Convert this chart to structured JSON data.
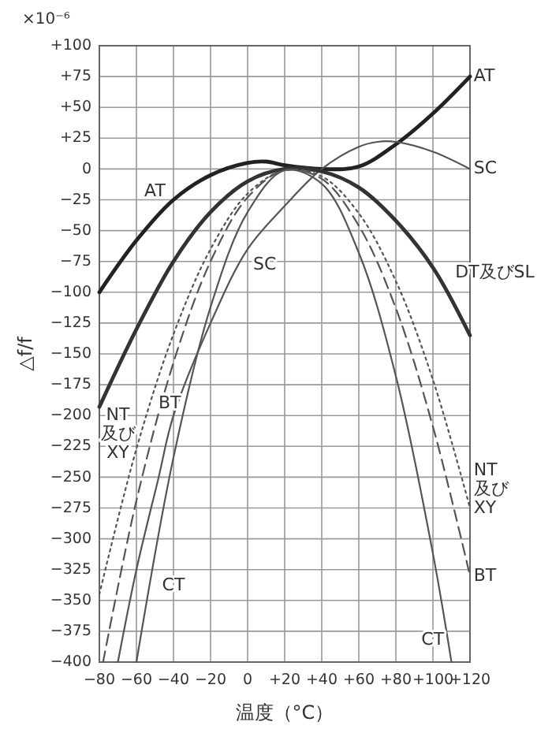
{
  "chart_data": {
    "type": "line",
    "xlabel": "温度（°C）",
    "ylabel": "△f/f",
    "annotations": [
      "×10⁻⁶",
      "AT",
      "SC",
      "BT",
      "NT及びXY",
      "CT"
    ],
    "xlim": [
      -80,
      120
    ],
    "xticks": [
      {
        "value": -80,
        "label": "−80"
      },
      {
        "value": -60,
        "label": "−60"
      },
      {
        "value": -40,
        "label": "−40"
      },
      {
        "value": -20,
        "label": "−20"
      },
      0,
      {
        "value": 20,
        "label": "+20"
      },
      {
        "value": 40,
        "label": "+40"
      },
      {
        "value": 60,
        "label": "+60"
      },
      {
        "value": 80,
        "label": "+80"
      },
      {
        "value": 100,
        "label": "+100"
      },
      {
        "value": 120,
        "label": "+120"
      }
    ],
    "ylim": [
      -400,
      100
    ],
    "yticks": [
      {
        "value": 100,
        "label": "+100"
      },
      {
        "value": 75,
        "label": "+75"
      },
      {
        "value": 50,
        "label": "+50"
      },
      {
        "value": 25,
        "label": "+25"
      },
      0,
      {
        "value": -25,
        "label": "−25"
      },
      {
        "value": -50,
        "label": "−50"
      },
      {
        "value": -75,
        "label": "−75"
      },
      {
        "value": -100,
        "label": "−100"
      },
      {
        "value": -125,
        "label": "−125"
      },
      {
        "value": -150,
        "label": "−150"
      },
      {
        "value": -175,
        "label": "−175"
      },
      {
        "value": -200,
        "label": "−200"
      },
      {
        "value": -225,
        "label": "−225"
      },
      {
        "value": -250,
        "label": "−250"
      },
      {
        "value": -275,
        "label": "−275"
      },
      {
        "value": -300,
        "label": "−300"
      },
      {
        "value": -325,
        "label": "−325"
      },
      {
        "value": -350,
        "label": "−350"
      },
      {
        "value": -375,
        "label": "−375"
      },
      {
        "value": -400,
        "label": "−400"
      }
    ],
    "grid": true,
    "legend": false,
    "marker": "none",
    "series": [
      {
        "name": "AT",
        "color": "#222222",
        "line_style": "solid",
        "x": [
          -80,
          -60,
          -40,
          -20,
          0,
          10,
          20,
          40,
          60,
          80,
          100,
          120
        ],
        "values": [
          -100,
          -58,
          -25,
          -5,
          5,
          6,
          3,
          0,
          2,
          20,
          45,
          75
        ]
      },
      {
        "name": "SC",
        "color": "#555555",
        "line_style": "solid",
        "x": [
          -70,
          -60,
          -48,
          -40,
          -20,
          0,
          20,
          40,
          60,
          70,
          80,
          100,
          120
        ],
        "values": [
          -400,
          -325,
          -250,
          -200,
          -125,
          -65,
          -30,
          0,
          18,
          22,
          22,
          14,
          0
        ]
      },
      {
        "name": "DT及びSL",
        "color": "#333333",
        "line_style": "solid",
        "x": [
          -80,
          -60,
          -40,
          -20,
          0,
          20,
          40,
          60,
          80,
          100,
          120
        ],
        "values": [
          -193,
          -130,
          -75,
          -35,
          -10,
          0,
          -2,
          -15,
          -42,
          -80,
          -135
        ]
      },
      {
        "name": "BT",
        "color": "#555555",
        "line_style": "dashed",
        "x": [
          -78,
          -60,
          -40,
          -20,
          0,
          20,
          40,
          60,
          80,
          100,
          120
        ],
        "values": [
          -400,
          -269,
          -157,
          -75,
          -23,
          -1,
          -8,
          -46,
          -113,
          -209,
          -330
        ]
      },
      {
        "name": "NT及びXY",
        "color": "#555555",
        "line_style": "dotted",
        "x": [
          -80,
          -60,
          -40,
          -20,
          0,
          20,
          40,
          60,
          80,
          100,
          120
        ],
        "values": [
          -345,
          -227,
          -134,
          -65,
          -20,
          -1,
          -6,
          -36,
          -91,
          -171,
          -275
        ]
      },
      {
        "name": "CT",
        "color": "#555555",
        "line_style": "solid",
        "x": [
          -60,
          -40,
          -20,
          0,
          20,
          40,
          60,
          80,
          100,
          110
        ],
        "values": [
          -400,
          -234,
          -112,
          -35,
          -1,
          -12,
          -68,
          -168,
          -312,
          -400
        ]
      }
    ]
  }
}
